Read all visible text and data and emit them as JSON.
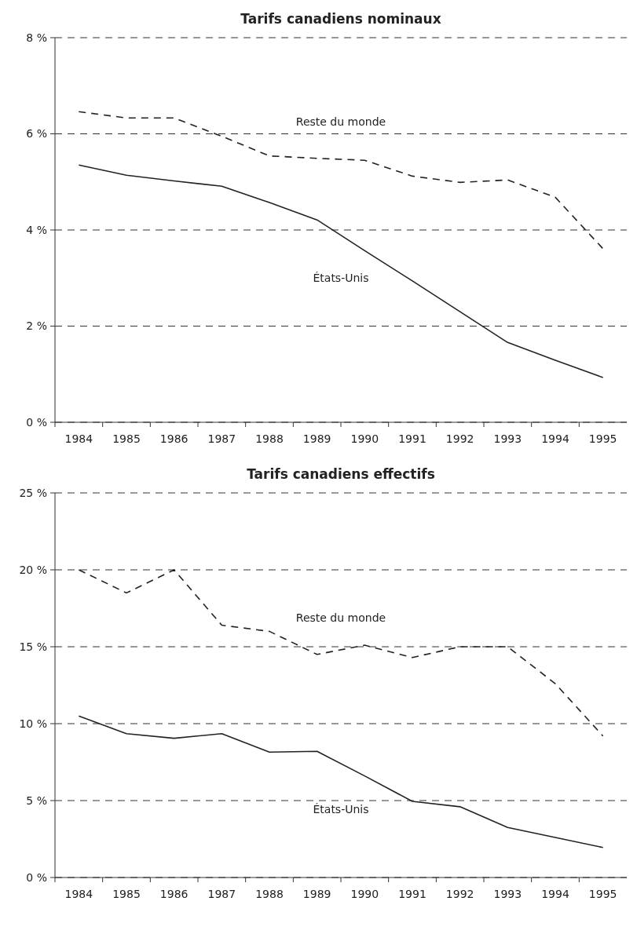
{
  "chart_data": [
    {
      "type": "line",
      "title": "Tarifs canadiens nominaux",
      "categories": [
        "1984",
        "1985",
        "1986",
        "1987",
        "1988",
        "1989",
        "1990",
        "1991",
        "1992",
        "1993",
        "1994",
        "1995"
      ],
      "series": [
        {
          "name": "Reste du monde",
          "color": "#222222",
          "line_style": "dashed",
          "values": [
            6.46,
            6.33,
            6.33,
            5.95,
            5.54,
            5.49,
            5.45,
            5.12,
            4.99,
            5.04,
            4.68,
            3.61
          ]
        },
        {
          "name": "États-Unis",
          "color": "#222222",
          "line_style": "solid",
          "values": [
            5.35,
            5.14,
            5.02,
            4.91,
            4.57,
            4.21,
            3.57,
            2.94,
            2.3,
            1.66,
            1.29,
            0.93
          ]
        }
      ],
      "ylim": [
        0,
        8
      ],
      "yticks": [
        {
          "value": 0,
          "label": "0 %"
        },
        {
          "value": 2,
          "label": "2 %"
        },
        {
          "value": 4,
          "label": "4 %"
        },
        {
          "value": 6,
          "label": "6 %"
        },
        {
          "value": 8,
          "label": "8 %"
        }
      ],
      "grid": "y",
      "marker": "none"
    },
    {
      "type": "line",
      "title": "Tarifs canadiens effectifs",
      "categories": [
        "1984",
        "1985",
        "1986",
        "1987",
        "1988",
        "1989",
        "1990",
        "1991",
        "1992",
        "1993",
        "1994",
        "1995"
      ],
      "series": [
        {
          "name": "Reste du monde",
          "color": "#222222",
          "line_style": "dashed",
          "values": [
            20.0,
            18.5,
            20.0,
            16.4,
            16.0,
            14.5,
            15.1,
            14.3,
            15.0,
            15.0,
            12.6,
            9.2
          ]
        },
        {
          "name": "États-Unis",
          "color": "#222222",
          "line_style": "solid",
          "values": [
            10.5,
            9.35,
            9.05,
            9.35,
            8.15,
            8.2,
            6.6,
            4.95,
            4.6,
            3.25,
            2.6,
            1.95
          ]
        }
      ],
      "ylim": [
        0,
        25
      ],
      "yticks": [
        {
          "value": 0,
          "label": "0 %"
        },
        {
          "value": 5,
          "label": "5 %"
        },
        {
          "value": 10,
          "label": "10 %"
        },
        {
          "value": 15,
          "label": "15 %"
        },
        {
          "value": 20,
          "label": "20 %"
        },
        {
          "value": 25,
          "label": "25 %"
        }
      ],
      "grid": "y",
      "marker": "none"
    }
  ]
}
